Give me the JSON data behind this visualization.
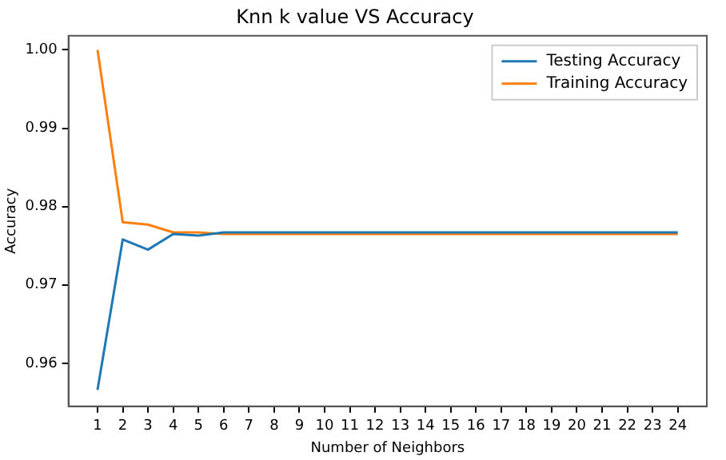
{
  "chart_data": {
    "type": "line",
    "title": "Knn k value VS Accuracy",
    "xlabel": "Number of Neighbors",
    "ylabel": "Accuracy",
    "x": [
      1,
      2,
      3,
      4,
      5,
      6,
      7,
      8,
      9,
      10,
      11,
      12,
      13,
      14,
      15,
      16,
      17,
      18,
      19,
      20,
      21,
      22,
      23,
      24
    ],
    "series": [
      {
        "name": "Testing Accuracy",
        "color": "#1f77b4",
        "values": [
          0.9566,
          0.9758,
          0.9745,
          0.9765,
          0.9763,
          0.9767,
          0.9767,
          0.9767,
          0.9767,
          0.9767,
          0.9767,
          0.9767,
          0.9767,
          0.9767,
          0.9767,
          0.9767,
          0.9767,
          0.9767,
          0.9767,
          0.9767,
          0.9767,
          0.9767,
          0.9767,
          0.9767
        ]
      },
      {
        "name": "Training Accuracy",
        "color": "#ff7f0e",
        "values": [
          1.0,
          0.978,
          0.9777,
          0.9767,
          0.9767,
          0.9765,
          0.9765,
          0.9765,
          0.9765,
          0.9765,
          0.9765,
          0.9765,
          0.9765,
          0.9765,
          0.9765,
          0.9765,
          0.9765,
          0.9765,
          0.9765,
          0.9765,
          0.9765,
          0.9765,
          0.9765,
          0.9765
        ]
      }
    ],
    "xlim": [
      -0.15,
      25.15
    ],
    "xticks": [
      1,
      2,
      3,
      4,
      5,
      6,
      7,
      8,
      9,
      10,
      11,
      12,
      13,
      14,
      15,
      16,
      17,
      18,
      19,
      20,
      21,
      22,
      23,
      24
    ],
    "ylim": [
      0.9545,
      1.0018
    ],
    "yticks": [
      {
        "value": 0.96,
        "label": "0.96"
      },
      {
        "value": 0.97,
        "label": "0.97"
      },
      {
        "value": 0.98,
        "label": "0.98"
      },
      {
        "value": 0.99,
        "label": "0.99"
      },
      {
        "value": 1.0,
        "label": "1.00"
      }
    ],
    "grid": false,
    "legend": "top right",
    "marker": "none",
    "line_style": "solid"
  }
}
